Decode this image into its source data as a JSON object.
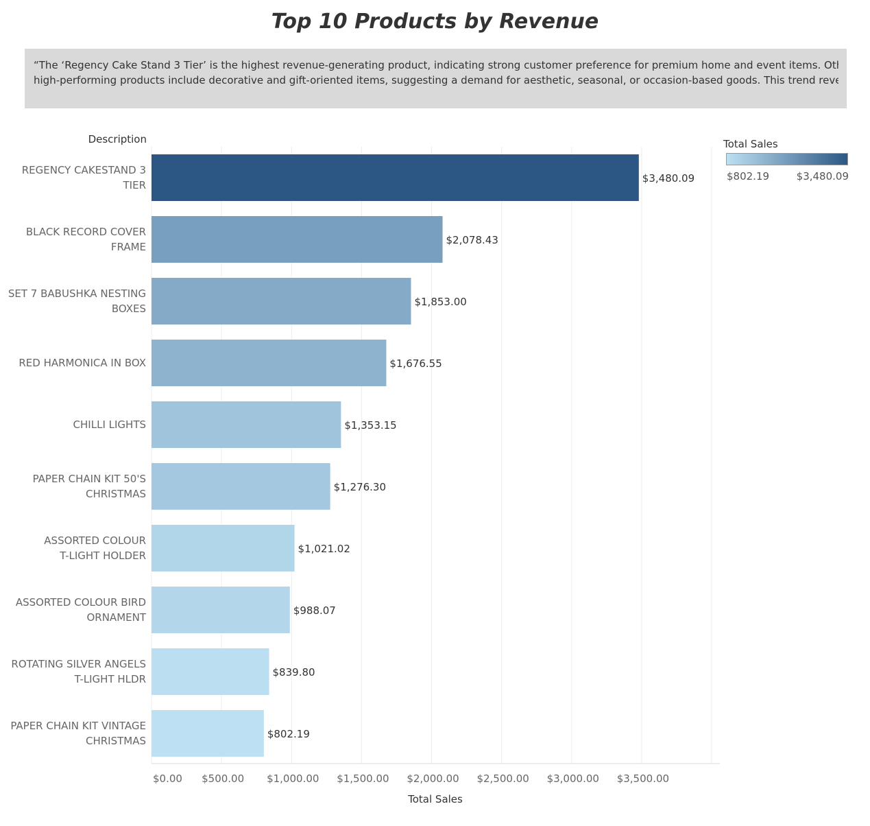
{
  "title": "Top 10 Products by Revenue",
  "caption": {
    "line1": "“The ‘Regency Cake Stand 3 Tier’ is the highest revenue-generating product, indicating strong customer preference for premium home and event items. Other",
    "line2": "high-performing products include decorative and gift-oriented items, suggesting a demand for aesthetic, seasonal, or occasion-based goods. This trend reveals an op.."
  },
  "legend": {
    "title": "Total Sales",
    "min_label": "$802.19",
    "max_label": "$3,480.09",
    "color_low": "#bde0f2",
    "color_high": "#2c5784"
  },
  "chart_data": {
    "type": "bar",
    "orientation": "horizontal",
    "title": "Top 10 Products by Revenue",
    "ylabel": "Description",
    "xlabel": "Total Sales",
    "xlim": [
      0,
      4000
    ],
    "x_ticks": [
      0,
      500,
      1000,
      1500,
      2000,
      2500,
      3000,
      3500
    ],
    "x_tick_labels": [
      "$0.00",
      "$500.00",
      "$1,000.00",
      "$1,500.00",
      "$2,000.00",
      "$2,500.00",
      "$3,000.00",
      "$3,500.00"
    ],
    "grid": "vertical",
    "categories": [
      [
        "REGENCY CAKESTAND 3",
        "TIER"
      ],
      [
        "BLACK RECORD COVER",
        "FRAME"
      ],
      [
        "SET 7 BABUSHKA NESTING",
        "BOXES"
      ],
      [
        "RED  HARMONICA IN BOX"
      ],
      [
        "CHILLI LIGHTS"
      ],
      [
        "PAPER CHAIN KIT 50'S",
        "CHRISTMAS"
      ],
      [
        "ASSORTED COLOUR",
        "T-LIGHT HOLDER"
      ],
      [
        "ASSORTED COLOUR BIRD",
        "ORNAMENT"
      ],
      [
        "ROTATING SILVER ANGELS",
        "T-LIGHT HLDR"
      ],
      [
        "PAPER CHAIN KIT VINTAGE",
        "CHRISTMAS"
      ]
    ],
    "values": [
      3480.09,
      2078.43,
      1853.0,
      1676.55,
      1353.15,
      1276.3,
      1021.02,
      988.07,
      839.8,
      802.19
    ],
    "value_labels": [
      "$3,480.09",
      "$2,078.43",
      "$1,853.00",
      "$1,676.55",
      "$1,353.15",
      "$1,276.30",
      "$1,021.02",
      "$988.07",
      "$839.80",
      "$802.19"
    ],
    "color_scale": {
      "min": 802.19,
      "max": 3480.09
    },
    "legend_position": "top-right"
  }
}
